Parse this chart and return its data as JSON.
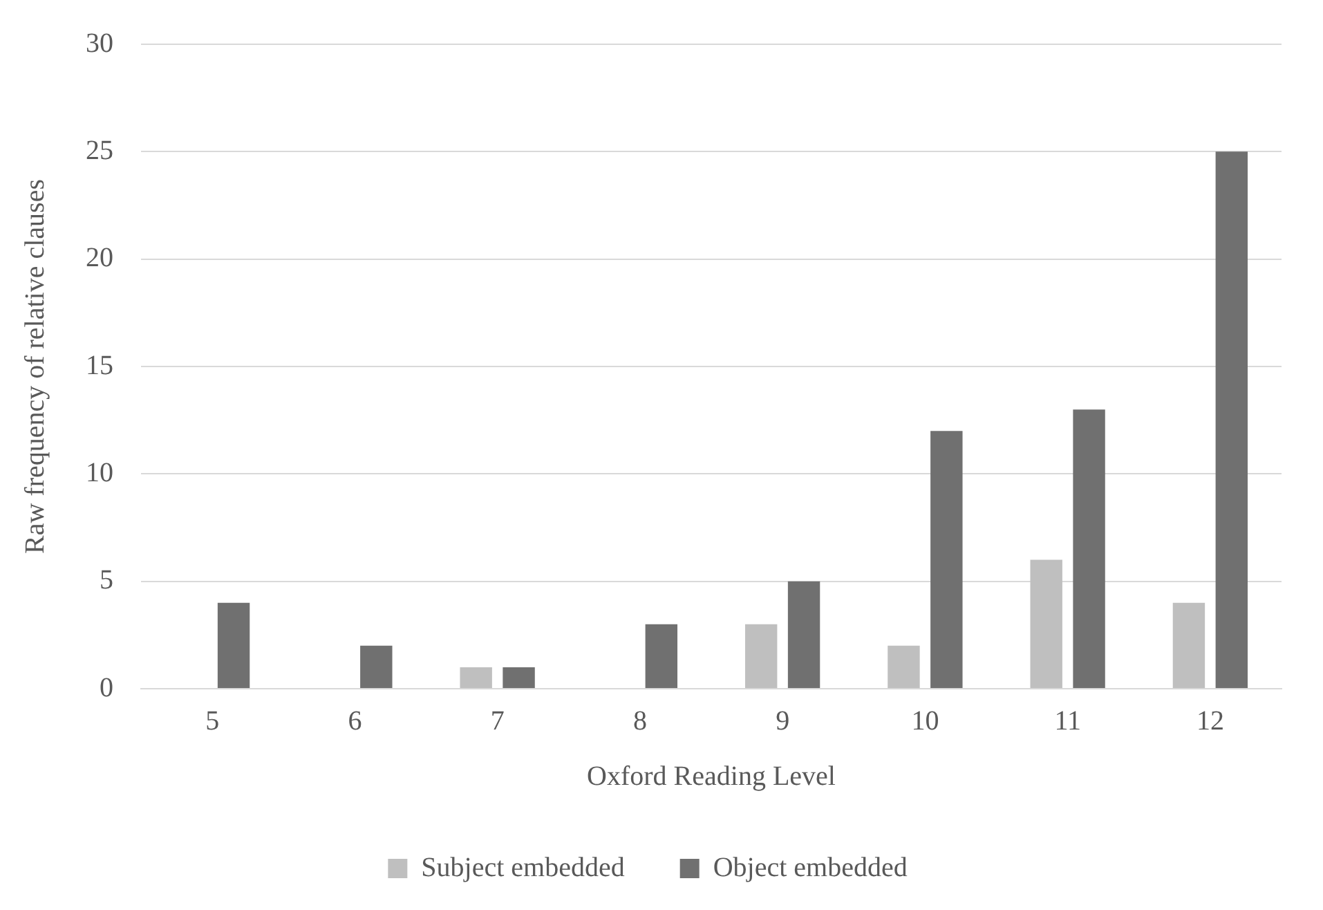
{
  "chart_data": {
    "type": "bar",
    "xlabel": "Oxford Reading Level",
    "ylabel": "Raw frequency of relative clauses",
    "categories": [
      "5",
      "6",
      "7",
      "8",
      "9",
      "10",
      "11",
      "12"
    ],
    "series": [
      {
        "name": "Subject embedded",
        "color": "#bfbfbf",
        "values": [
          0,
          0,
          1,
          0,
          3,
          2,
          6,
          4
        ]
      },
      {
        "name": "Object embedded",
        "color": "#707070",
        "values": [
          4,
          2,
          1,
          3,
          5,
          12,
          13,
          25
        ]
      }
    ],
    "ylim": [
      0,
      30
    ],
    "yticks": [
      0,
      5,
      10,
      15,
      20,
      25,
      30
    ],
    "grid": "y",
    "legend": "bottom"
  }
}
